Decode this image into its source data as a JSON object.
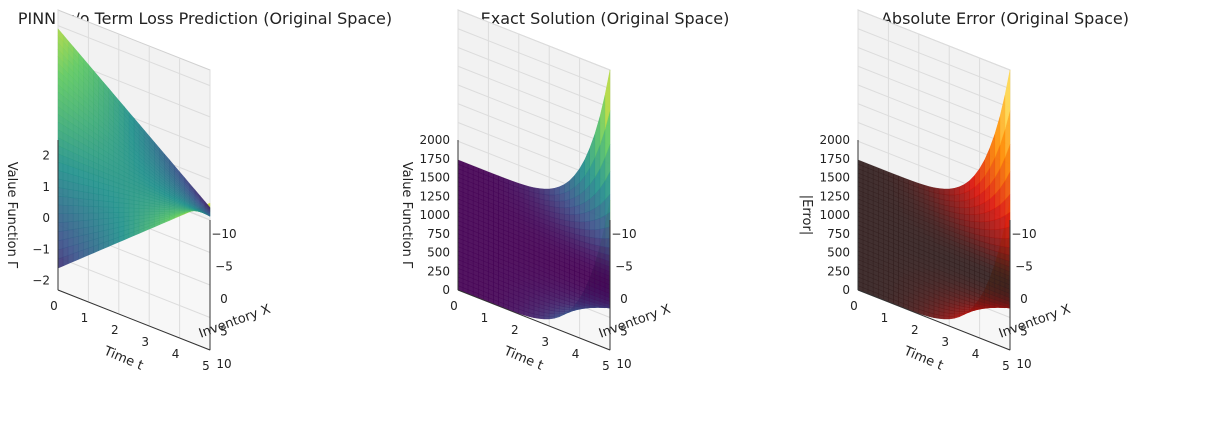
{
  "chart_data": [
    {
      "type": "surface3d",
      "title": "PINN w/o Term Loss Prediction (Original Space)",
      "xlabel": "Inventory X",
      "ylabel": "Time t",
      "zlabel": "Value Function Γ",
      "x_ticks": [
        "−10",
        "−5",
        "0",
        "5",
        "10"
      ],
      "t_ticks": [
        "0",
        "1",
        "2",
        "3",
        "4",
        "5"
      ],
      "z_ticks": [
        "−2",
        "−1",
        "0",
        "1",
        "2"
      ],
      "x_range": [
        -10,
        10
      ],
      "t_range": [
        0,
        5
      ],
      "z_range": [
        -2.3,
        2.5
      ],
      "surface_corners": {
        "x-10_t0": 1.9,
        "x10_t0": -1.6,
        "x-10_t5": -1.9,
        "x10_t5": 2.4
      },
      "colormap": "viridis"
    },
    {
      "type": "surface3d",
      "title": "Exact Solution (Original Space)",
      "xlabel": "Inventory X",
      "ylabel": "Time t",
      "zlabel": "Value Function Γ",
      "x_ticks": [
        "−10",
        "−5",
        "0",
        "5",
        "10"
      ],
      "t_ticks": [
        "0",
        "1",
        "2",
        "3",
        "4",
        "5"
      ],
      "z_ticks": [
        "0",
        "250",
        "500",
        "750",
        "1000",
        "1250",
        "1500",
        "1750",
        "2000"
      ],
      "x_range": [
        -10,
        10
      ],
      "t_range": [
        0,
        5
      ],
      "z_range": [
        0,
        2000
      ],
      "peak_value_at_t5_x_pm10": 2000,
      "colormap": "viridis"
    },
    {
      "type": "surface3d",
      "title": "Absolute Error (Original Space)",
      "xlabel": "Inventory X",
      "ylabel": "Time t",
      "zlabel": "|Error|",
      "x_ticks": [
        "−10",
        "−5",
        "0",
        "5",
        "10"
      ],
      "t_ticks": [
        "0",
        "1",
        "2",
        "3",
        "4",
        "5"
      ],
      "z_ticks": [
        "0",
        "250",
        "500",
        "750",
        "1000",
        "1250",
        "1500",
        "1750",
        "2000"
      ],
      "x_range": [
        -10,
        10
      ],
      "t_range": [
        0,
        5
      ],
      "z_range": [
        0,
        2000
      ],
      "peak_value_at_t5_x_pm10": 2000,
      "colormap": "hot"
    }
  ]
}
